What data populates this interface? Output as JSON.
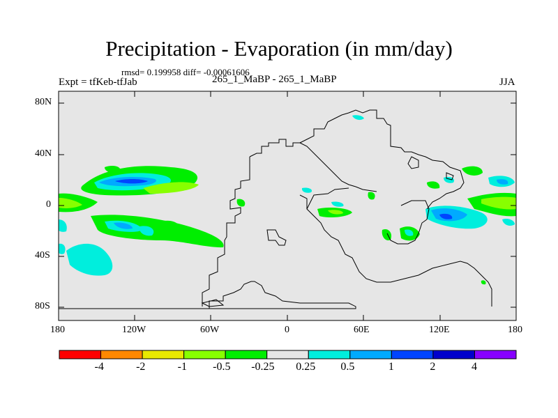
{
  "title": "Precipitation - Evaporation (in mm/day)",
  "stats_line": "rmsd= 0.199958 diff= -0.00061606",
  "experiment": "Expt = tfKeb-tfJab",
  "cases": "265_1_MaBP - 265_1_MaBP",
  "season": "JJA",
  "lat_labels": [
    "80N",
    "40N",
    "0",
    "40S",
    "80S"
  ],
  "lon_labels": [
    "180",
    "120W",
    "60W",
    "0",
    "60E",
    "120E",
    "180"
  ],
  "colorbar": {
    "labels": [
      "-4",
      "-2",
      "-1",
      "-0.5",
      "-0.25",
      "0.25",
      "0.5",
      "1",
      "2",
      "4"
    ],
    "colors": [
      "#ff0000",
      "#ff8800",
      "#e8e800",
      "#88ff00",
      "#00ee00",
      "#e6e6e6",
      "#00eedd",
      "#00aaff",
      "#0044ff",
      "#0000cc",
      "#8800ff"
    ]
  },
  "colors": {
    "background_field": "#e6e6e6",
    "green": "#00ee00",
    "light_green": "#88ff00",
    "cyan": "#00eedd",
    "light_blue": "#00aaff",
    "blue": "#0044ff"
  }
}
